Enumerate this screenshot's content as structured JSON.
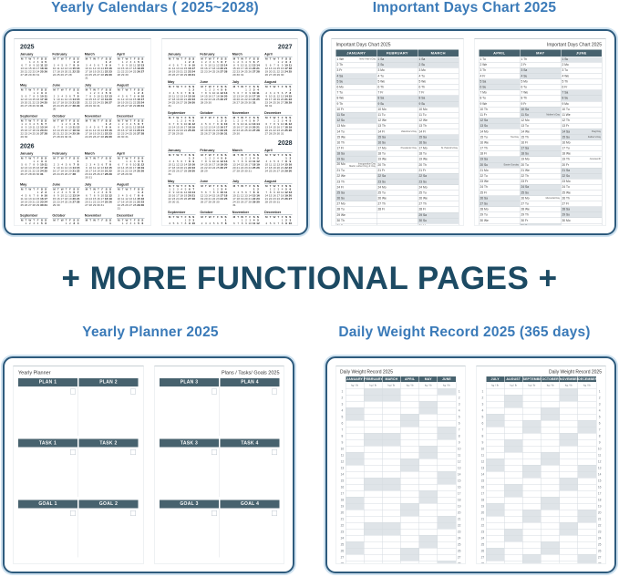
{
  "colors": {
    "caption_blue": "#3a7ab8",
    "banner_navy": "#1c4a63",
    "panel_border": "#2e5b7d",
    "header_bar": "#47626e",
    "weekend_shade": "#dfe4e8"
  },
  "captions": {
    "yearly_calendars": "Yearly Calendars ( 2025~2028)",
    "important_days": "Important Days Chart 2025",
    "banner": "+ MORE FUNCTIONAL PAGES +",
    "yearly_planner": "Yearly Planner 2025",
    "weight_record": "Daily Weight Record 2025 (365 days)"
  },
  "calendars": {
    "pages": [
      [
        2025,
        2026
      ],
      [
        2027,
        2028
      ]
    ],
    "month_names": [
      "January",
      "February",
      "March",
      "April",
      "May",
      "June",
      "July",
      "August",
      "September",
      "October",
      "November",
      "December"
    ],
    "weekday_header": [
      "M",
      "T",
      "W",
      "T",
      "F",
      "S",
      "S"
    ]
  },
  "important_days": {
    "year": 2025,
    "page_titles": [
      "Important Days Chart 2025",
      "Important Days Chart 2025"
    ],
    "left_months": [
      "JANUARY",
      "FEBRUARY",
      "MARCH"
    ],
    "right_months": [
      "APRIL",
      "MAY",
      "JUNE"
    ],
    "weekday_abbrev": [
      "Su",
      "Mo",
      "Tu",
      "We",
      "Th",
      "Fr",
      "Sa"
    ],
    "holidays": [
      {
        "m": 1,
        "d": 1,
        "label": "New Year's Day"
      },
      {
        "m": 1,
        "d": 20,
        "label": "Inauguration Day\nMartin Luther King Jr. Day"
      },
      {
        "m": 2,
        "d": 14,
        "label": "Valentine's Day"
      },
      {
        "m": 2,
        "d": 17,
        "label": "Presidents' Day"
      },
      {
        "m": 3,
        "d": 17,
        "label": "St. Patrick's Day"
      },
      {
        "m": 4,
        "d": 15,
        "label": "Tax Day"
      },
      {
        "m": 4,
        "d": 20,
        "label": "Easter Sunday"
      },
      {
        "m": 5,
        "d": 11,
        "label": "Mother's Day"
      },
      {
        "m": 5,
        "d": 26,
        "label": "Memorial Day"
      },
      {
        "m": 6,
        "d": 14,
        "label": "Flag Day"
      },
      {
        "m": 6,
        "d": 15,
        "label": "Father's Day"
      },
      {
        "m": 6,
        "d": 19,
        "label": "Juneteenth"
      }
    ]
  },
  "planner": {
    "left_title": "Yearly Planner",
    "right_title": "Plans / Tasks/ Goals 2025",
    "left_sections": [
      [
        "PLAN 1",
        "PLAN 2"
      ],
      [
        "TASK 1",
        "TASK 2"
      ],
      [
        "GOAL 1",
        "GOAL 2"
      ]
    ],
    "right_sections": [
      [
        "PLAN 3",
        "PLAN 4"
      ],
      [
        "TASK 3",
        "TASK 4"
      ],
      [
        "GOAL 3",
        "GOAL 4"
      ]
    ]
  },
  "weight": {
    "year": 2025,
    "page_titles": [
      "Daily Weight Record 2025",
      "Daily Weight Record 2025"
    ],
    "left_months": [
      "JANUARY",
      "FEBRUARY",
      "MARCH",
      "APRIL",
      "MAY",
      "JUNE"
    ],
    "right_months": [
      "JULY",
      "AUGUST",
      "SEPTEMBER",
      "OCTOBER",
      "NOVEMBER",
      "DECEMBER"
    ],
    "unit_label": "kg / lb",
    "rows": 31
  }
}
